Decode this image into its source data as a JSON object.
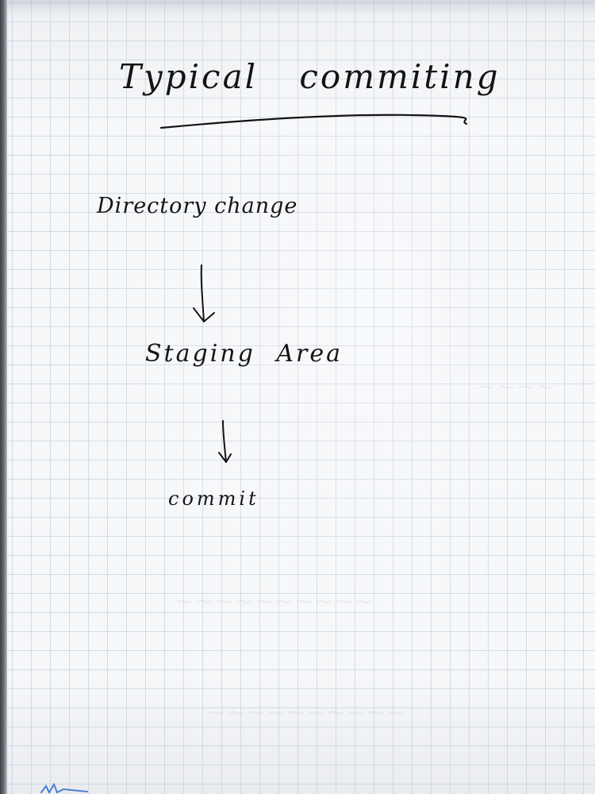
{
  "title": "Typical commiting",
  "flow": {
    "steps": [
      {
        "label": "Directory change"
      },
      {
        "label": "Staging Area"
      },
      {
        "label": "commit"
      }
    ]
  },
  "colors": {
    "ink": "#141414",
    "paper": "#f6f7f9",
    "grid": "#96aac8"
  }
}
